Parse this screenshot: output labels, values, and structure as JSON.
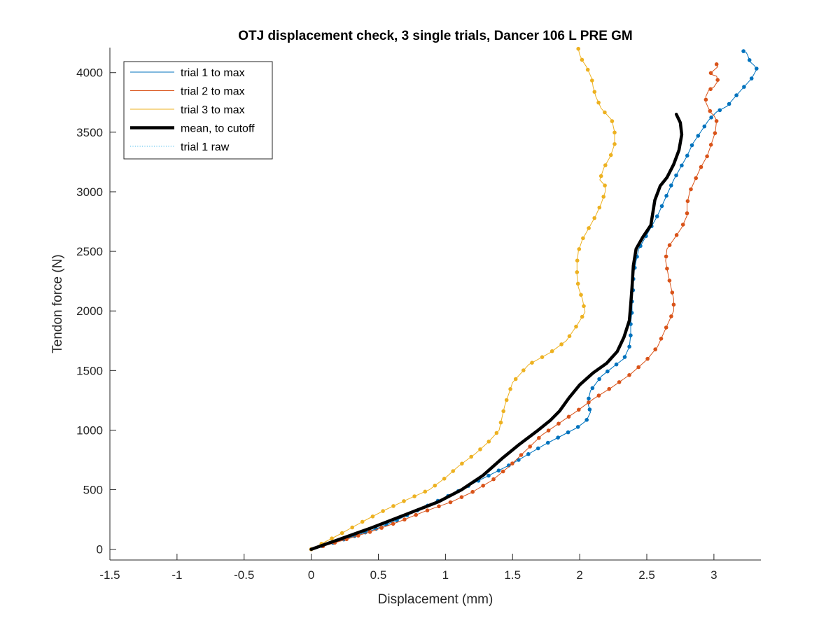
{
  "chart_data": {
    "type": "line",
    "title": "OTJ displacement check, 3 single trials, Dancer 106 L PRE GM",
    "xlabel": "Displacement (mm)",
    "ylabel": "Tendon force (N)",
    "xlim": [
      -1.5,
      3.35
    ],
    "ylim": [
      -90,
      4210
    ],
    "xticks": [
      -1.5,
      -1,
      -0.5,
      0,
      0.5,
      1,
      1.5,
      2,
      2.5,
      3
    ],
    "xtick_labels": [
      "-1.5",
      "-1",
      "-0.5",
      "0",
      "0.5",
      "1",
      "1.5",
      "2",
      "2.5",
      "3"
    ],
    "yticks": [
      0,
      500,
      1000,
      1500,
      2000,
      2500,
      3000,
      3500,
      4000
    ],
    "ytick_labels": [
      "0",
      "500",
      "1000",
      "1500",
      "2000",
      "2500",
      "3000",
      "3500",
      "4000"
    ],
    "grid": false,
    "legend_position": "top-left",
    "series": [
      {
        "name": "trial 1 to max",
        "color": "#0072BD",
        "line_width": 1,
        "markers": true,
        "marker_count": 66,
        "x": [
          0,
          0.18,
          0.32,
          0.48,
          0.63,
          0.78,
          0.93,
          1.08,
          1.22,
          1.36,
          1.5,
          1.62,
          1.74,
          1.86,
          1.98,
          2.05,
          2.08,
          2.06,
          2.08,
          2.16,
          2.26,
          2.33,
          2.37,
          2.38,
          2.38,
          2.39,
          2.39,
          2.4,
          2.4,
          2.42,
          2.44,
          2.48,
          2.53,
          2.58,
          2.62,
          2.66,
          2.7,
          2.75,
          2.8,
          2.84,
          2.9,
          2.96,
          3.02,
          3.1,
          3.13,
          3.16,
          3.2,
          3.24,
          3.28,
          3.3,
          3.32,
          3.3,
          3.27,
          3.26,
          3.25,
          3.24,
          3.22
        ],
        "y": [
          0,
          60,
          110,
          170,
          240,
          320,
          400,
          480,
          560,
          640,
          720,
          800,
          880,
          950,
          1020,
          1080,
          1150,
          1230,
          1330,
          1450,
          1540,
          1600,
          1700,
          1800,
          1900,
          2000,
          2100,
          2200,
          2300,
          2420,
          2520,
          2600,
          2700,
          2800,
          2900,
          3000,
          3100,
          3200,
          3300,
          3400,
          3500,
          3600,
          3670,
          3720,
          3760,
          3800,
          3850,
          3900,
          3950,
          3990,
          4030,
          4060,
          4090,
          4120,
          4150,
          4170,
          4180
        ]
      },
      {
        "name": "trial 2 to max",
        "color": "#D95319",
        "line_width": 1,
        "markers": true,
        "marker_count": 60,
        "x": [
          0,
          0.1,
          0.25,
          0.45,
          0.65,
          0.85,
          1.05,
          1.2,
          1.35,
          1.48,
          1.6,
          1.72,
          1.85,
          1.98,
          2.1,
          2.24,
          2.38,
          2.5,
          2.58,
          2.62,
          2.66,
          2.7,
          2.7,
          2.68,
          2.66,
          2.64,
          2.65,
          2.7,
          2.76,
          2.8,
          2.8,
          2.82,
          2.86,
          2.9,
          2.95,
          2.98,
          3.01,
          3.02,
          3.0,
          2.98,
          2.96,
          2.94,
          2.94,
          2.96,
          3.0,
          3.03,
          3.02,
          2.97,
          3.0,
          3.03,
          3.02
        ],
        "y": [
          0,
          30,
          80,
          150,
          230,
          320,
          400,
          480,
          580,
          700,
          830,
          960,
          1060,
          1160,
          1260,
          1360,
          1470,
          1590,
          1700,
          1800,
          1900,
          2000,
          2100,
          2200,
          2300,
          2420,
          2520,
          2600,
          2700,
          2800,
          2900,
          3000,
          3100,
          3200,
          3300,
          3400,
          3500,
          3600,
          3640,
          3660,
          3700,
          3750,
          3800,
          3850,
          3880,
          3930,
          3970,
          3990,
          4020,
          4050,
          4070
        ]
      },
      {
        "name": "trial 3 to max",
        "color": "#EDB120",
        "line_width": 1,
        "markers": true,
        "marker_count": 58,
        "x": [
          0,
          0.1,
          0.22,
          0.38,
          0.55,
          0.72,
          0.88,
          1.0,
          1.1,
          1.22,
          1.32,
          1.4,
          1.42,
          1.44,
          1.5,
          1.62,
          1.78,
          1.9,
          1.98,
          2.04,
          2.02,
          1.99,
          1.98,
          1.98,
          1.99,
          2.02,
          2.07,
          2.12,
          2.16,
          2.19,
          2.19,
          2.15,
          2.18,
          2.23,
          2.26,
          2.26,
          2.24,
          2.16,
          2.12,
          2.1,
          2.09,
          2.07,
          2.05,
          2.02,
          2.0,
          1.99
        ],
        "y": [
          0,
          60,
          130,
          230,
          330,
          420,
          500,
          600,
          700,
          800,
          900,
          1000,
          1100,
          1200,
          1400,
          1550,
          1650,
          1750,
          1880,
          1990,
          2100,
          2200,
          2300,
          2400,
          2500,
          2600,
          2700,
          2800,
          2900,
          3000,
          3050,
          3100,
          3200,
          3300,
          3400,
          3500,
          3600,
          3700,
          3800,
          3880,
          3950,
          4000,
          4050,
          4100,
          4150,
          4200
        ]
      },
      {
        "name": "mean, to cutoff",
        "color": "#000000",
        "line_width": 4.5,
        "markers": false,
        "x": [
          0,
          0.2,
          0.45,
          0.7,
          0.95,
          1.12,
          1.28,
          1.42,
          1.55,
          1.68,
          1.78,
          1.85,
          1.92,
          2.0,
          2.1,
          2.2,
          2.28,
          2.33,
          2.37,
          2.38,
          2.39,
          2.4,
          2.42,
          2.47,
          2.53,
          2.56,
          2.6,
          2.65,
          2.7,
          2.74,
          2.76,
          2.75,
          2.72
        ],
        "y": [
          0,
          80,
          180,
          290,
          400,
          500,
          620,
          760,
          880,
          990,
          1080,
          1160,
          1270,
          1380,
          1480,
          1560,
          1660,
          1780,
          1920,
          2050,
          2200,
          2380,
          2520,
          2620,
          2720,
          2930,
          3050,
          3120,
          3230,
          3350,
          3480,
          3580,
          3650
        ]
      },
      {
        "name": "trial 1 raw",
        "color": "#4DBEEE",
        "line_width": 1,
        "dotted": true,
        "markers": false,
        "x": [
          0,
          0.18,
          0.32,
          0.48,
          0.63,
          0.78,
          0.93,
          1.08,
          1.22,
          1.36,
          1.5,
          1.62,
          1.74,
          1.86,
          1.98,
          2.05,
          2.08,
          2.06,
          2.08,
          2.16,
          2.26,
          2.33,
          2.37,
          2.38,
          2.38,
          2.39,
          2.39,
          2.4,
          2.4,
          2.42,
          2.44,
          2.48,
          2.53,
          2.58,
          2.62,
          2.66,
          2.7,
          2.75,
          2.8,
          2.84,
          2.9,
          2.96,
          3.02,
          3.1
        ],
        "y": [
          0,
          60,
          110,
          170,
          240,
          320,
          400,
          480,
          560,
          640,
          720,
          800,
          880,
          950,
          1020,
          1080,
          1150,
          1230,
          1330,
          1450,
          1540,
          1600,
          1700,
          1800,
          1900,
          2000,
          2100,
          2200,
          2300,
          2420,
          2520,
          2600,
          2700,
          2800,
          2900,
          3000,
          3100,
          3200,
          3300,
          3400,
          3500,
          3600,
          3670,
          3720
        ]
      }
    ]
  }
}
